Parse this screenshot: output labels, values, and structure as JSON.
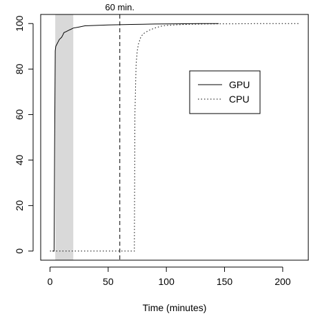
{
  "chart_data": {
    "type": "line",
    "title": "",
    "xlabel": "Time (minutes)",
    "ylabel": "",
    "xlim": [
      -8,
      222
    ],
    "ylim": [
      -4,
      104
    ],
    "x_ticks": [
      0,
      50,
      100,
      150,
      200
    ],
    "y_ticks": [
      0,
      20,
      40,
      60,
      80,
      100
    ],
    "grid": false,
    "legend_position": "upper-right (inside plot)",
    "shaded_region": {
      "x_start": 4.5,
      "x_end": 20,
      "color": "#d9d9d9"
    },
    "vline": {
      "x": 60,
      "label": "60 min.",
      "style": "dashed"
    },
    "series": [
      {
        "name": "GPU",
        "style": "solid",
        "color": "#000000",
        "x": [
          2,
          3.5,
          4,
          4.5,
          5,
          6,
          7,
          8,
          9,
          10,
          11,
          12,
          14,
          16,
          18,
          20,
          25,
          30,
          40,
          50,
          60,
          70,
          80,
          90,
          100,
          110,
          120,
          130,
          140,
          145
        ],
        "y": [
          0,
          0,
          47,
          88,
          90,
          91,
          92,
          93,
          93.5,
          94,
          95,
          96,
          96.5,
          97,
          97.5,
          98,
          98.5,
          99,
          99.2,
          99.4,
          99.5,
          99.6,
          99.7,
          99.8,
          99.85,
          99.9,
          99.95,
          100,
          100,
          100
        ]
      },
      {
        "name": "CPU",
        "style": "dotted",
        "color": "#000000",
        "x": [
          0,
          70,
          72.5,
          73,
          74,
          75,
          76,
          78,
          80,
          85,
          90,
          95,
          100,
          110,
          120,
          140,
          160,
          180,
          200,
          215
        ],
        "y": [
          0,
          0,
          0,
          60,
          82,
          88,
          91,
          94,
          95.5,
          97,
          98,
          98.8,
          99.2,
          99.5,
          99.7,
          99.85,
          99.9,
          100,
          100,
          100
        ]
      }
    ]
  }
}
